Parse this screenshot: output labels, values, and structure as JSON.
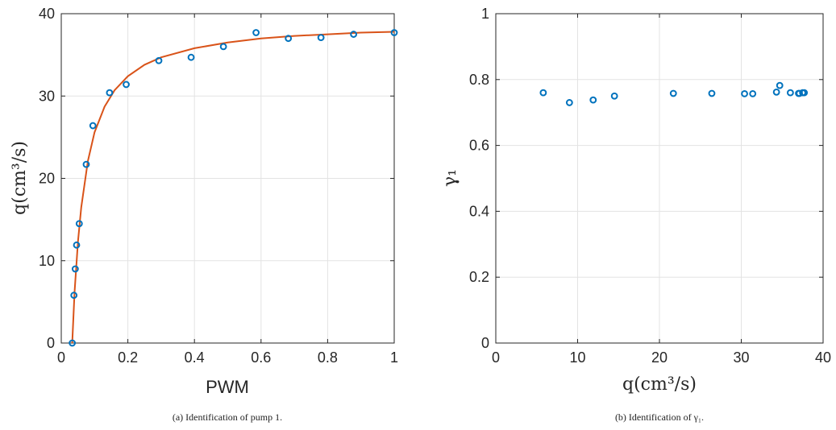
{
  "chart_data": [
    {
      "type": "scatter",
      "xlabel": "PWM",
      "ylabel": "q(cm³/s)",
      "xlim": [
        0,
        1
      ],
      "ylim": [
        0,
        40
      ],
      "xticks": [
        "0",
        "0.2",
        "0.4",
        "0.6",
        "0.8",
        "1"
      ],
      "yticks": [
        "0",
        "10",
        "20",
        "30",
        "40"
      ],
      "grid": true,
      "caption": "(a) Identification of pump 1.",
      "series": [
        {
          "kind": "markers",
          "color": "#0072bd",
          "x": [
            0.033,
            0.038,
            0.042,
            0.046,
            0.054,
            0.075,
            0.095,
            0.145,
            0.195,
            0.293,
            0.39,
            0.487,
            0.585,
            0.682,
            0.78,
            0.878,
            1.0
          ],
          "y": [
            0,
            5.8,
            9.0,
            11.9,
            14.5,
            21.7,
            26.4,
            30.4,
            31.4,
            34.3,
            34.7,
            36.0,
            37.7,
            37.0,
            37.1,
            37.5,
            37.7
          ]
        },
        {
          "kind": "fitted-curve",
          "color": "#d95319",
          "x": [
            0.033,
            0.04,
            0.05,
            0.06,
            0.08,
            0.1,
            0.13,
            0.16,
            0.2,
            0.25,
            0.3,
            0.4,
            0.5,
            0.6,
            0.7,
            0.8,
            0.9,
            1.0
          ],
          "y": [
            0,
            6.2,
            12.3,
            16.5,
            22.1,
            25.6,
            28.7,
            30.7,
            32.4,
            33.8,
            34.7,
            35.8,
            36.5,
            37.0,
            37.3,
            37.5,
            37.7,
            37.8
          ]
        }
      ]
    },
    {
      "type": "scatter",
      "xlabel": "q(cm³/s)",
      "ylabel": "γ₁",
      "xlim": [
        0,
        40
      ],
      "ylim": [
        0,
        1
      ],
      "xticks": [
        "0",
        "10",
        "20",
        "30",
        "40"
      ],
      "yticks": [
        "0",
        "0.2",
        "0.4",
        "0.6",
        "0.8",
        "1"
      ],
      "grid": true,
      "caption": "(b) Identification of γ₁.",
      "series": [
        {
          "kind": "markers",
          "color": "#0072bd",
          "x": [
            5.8,
            9.0,
            11.9,
            14.5,
            21.7,
            26.4,
            30.4,
            31.4,
            34.3,
            34.7,
            36.0,
            37.0,
            37.1,
            37.5,
            37.7
          ],
          "y": [
            0.76,
            0.73,
            0.738,
            0.75,
            0.758,
            0.758,
            0.757,
            0.757,
            0.762,
            0.782,
            0.76,
            0.758,
            0.758,
            0.76,
            0.76
          ]
        }
      ]
    }
  ]
}
